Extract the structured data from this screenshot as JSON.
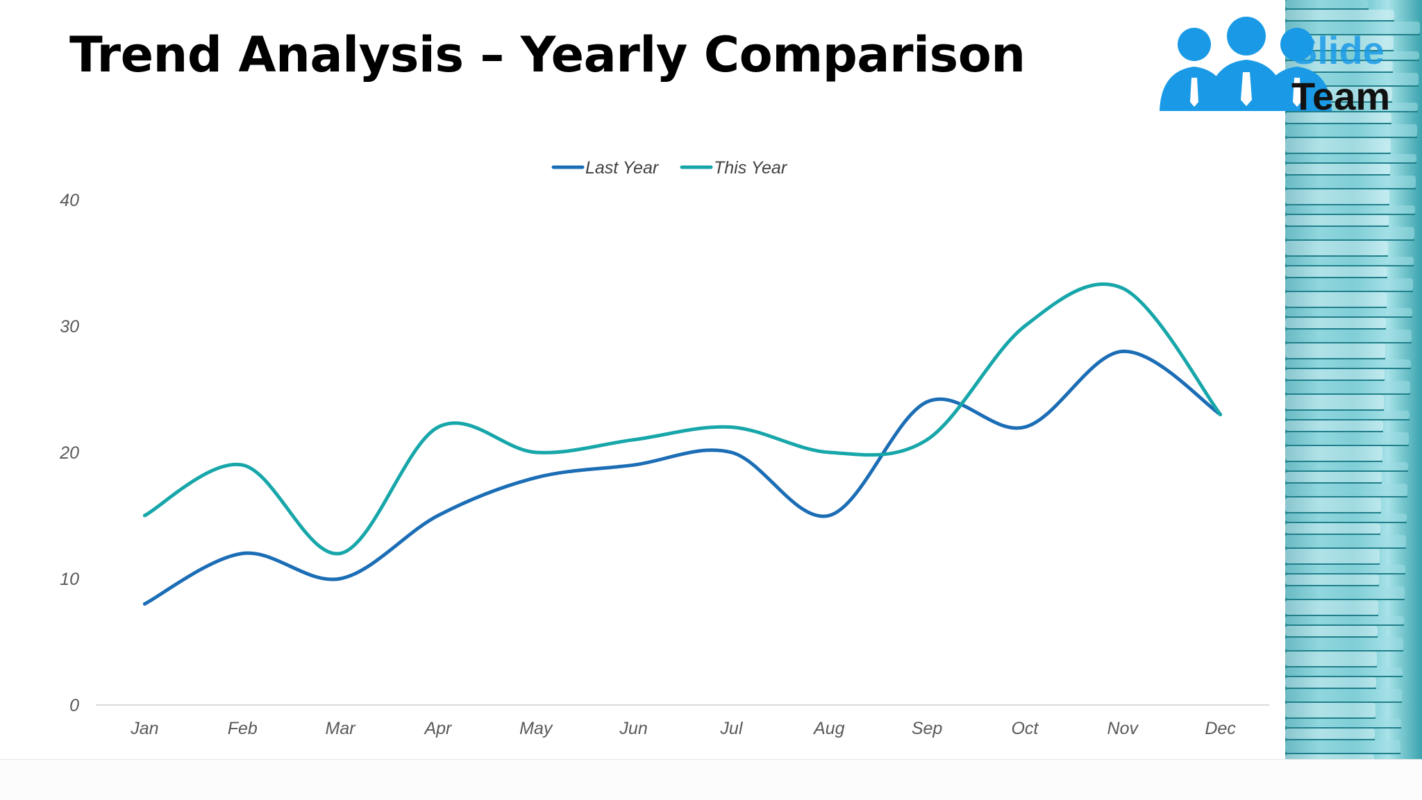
{
  "slide": {
    "title": "Trend Analysis – Yearly Comparison"
  },
  "logo": {
    "text_top": "Slide",
    "text_bottom": "Team",
    "icon": "three-people-icon",
    "color": "#1a9ae6"
  },
  "decor": {
    "side_image": "coin-stacks-image",
    "color": "#5cbcc6"
  },
  "chart_data": {
    "type": "line",
    "title": "",
    "xlabel": "",
    "ylabel": "",
    "categories": [
      "Jan",
      "Feb",
      "Mar",
      "Apr",
      "May",
      "Jun",
      "Jul",
      "Aug",
      "Sep",
      "Oct",
      "Nov",
      "Dec"
    ],
    "series": [
      {
        "name": "Last Year",
        "color": "#1b6db5",
        "values": [
          8,
          12,
          10,
          15,
          18,
          19,
          20,
          15,
          24,
          22,
          28,
          23
        ]
      },
      {
        "name": "This Year",
        "color": "#17a6a9",
        "values": [
          15,
          19,
          12,
          22,
          20,
          21,
          22,
          20,
          21,
          30,
          33,
          23
        ]
      }
    ],
    "ylim": [
      0,
      40
    ],
    "yticks": [
      "0",
      "10",
      "20",
      "30",
      "40"
    ],
    "grid": false,
    "smooth": true,
    "legend_position": "top-center"
  }
}
